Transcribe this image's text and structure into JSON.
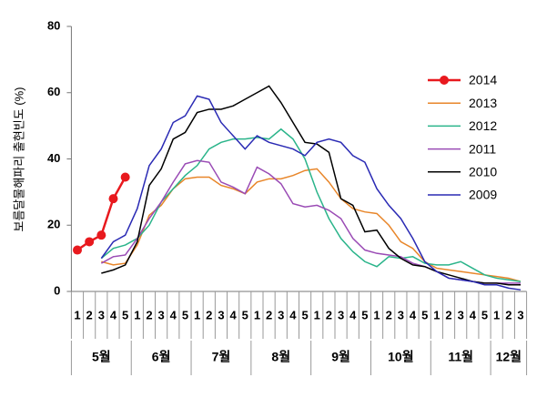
{
  "chart_data": {
    "type": "line",
    "ylabel": "보름달물해파리 출현빈도 (%)",
    "months": [
      {
        "name": "5월",
        "weeks": [
          "1",
          "2",
          "3",
          "4",
          "5"
        ]
      },
      {
        "name": "6월",
        "weeks": [
          "1",
          "2",
          "3",
          "4",
          "5"
        ]
      },
      {
        "name": "7월",
        "weeks": [
          "1",
          "2",
          "3",
          "4",
          "5"
        ]
      },
      {
        "name": "8월",
        "weeks": [
          "1",
          "2",
          "3",
          "4",
          "5"
        ]
      },
      {
        "name": "9월",
        "weeks": [
          "1",
          "2",
          "3",
          "4",
          "5"
        ]
      },
      {
        "name": "10월",
        "weeks": [
          "1",
          "2",
          "3",
          "4",
          "5"
        ]
      },
      {
        "name": "11월",
        "weeks": [
          "1",
          "2",
          "3",
          "4",
          "5"
        ]
      },
      {
        "name": "12월",
        "weeks": [
          "1",
          "2",
          "3"
        ]
      }
    ],
    "ylim": [
      0,
      80
    ],
    "yticks": [
      0,
      20,
      40,
      60,
      80
    ],
    "series": [
      {
        "name": "2014",
        "color": "#e8191e",
        "marker": true,
        "values": [
          12.5,
          15,
          17,
          28,
          34.5,
          null,
          null,
          null,
          null,
          null,
          null,
          null,
          null,
          null,
          null,
          null,
          null,
          null,
          null,
          null,
          null,
          null,
          null,
          null,
          null,
          null,
          null,
          null,
          null,
          null,
          null,
          null,
          null,
          null,
          null,
          null,
          null,
          null
        ]
      },
      {
        "name": "2013",
        "color": "#e8862a",
        "values": [
          null,
          null,
          9,
          8,
          8.5,
          14,
          23,
          26,
          31,
          34,
          34.5,
          34.5,
          32,
          31,
          29.5,
          33,
          34,
          34,
          35,
          36.5,
          37,
          33,
          28,
          25,
          24,
          23.5,
          20,
          15,
          13,
          9,
          7,
          6.5,
          6,
          5.5,
          5,
          4.5,
          4,
          3
        ]
      },
      {
        "name": "2012",
        "color": "#2ab48a",
        "values": [
          null,
          null,
          10,
          13,
          14,
          16,
          20,
          27,
          31,
          35,
          38,
          43,
          45,
          46,
          46,
          46.5,
          46,
          49,
          46,
          40,
          30,
          22,
          16,
          12,
          9,
          7.5,
          10.5,
          10,
          10.5,
          8.5,
          8,
          8,
          9,
          7,
          5,
          4,
          3.5,
          3
        ]
      },
      {
        "name": "2011",
        "color": "#9a4bb5",
        "values": [
          null,
          null,
          8.5,
          10.5,
          11,
          16,
          22,
          27,
          33,
          38.5,
          39.5,
          39,
          33,
          31.5,
          29.5,
          37.5,
          35.5,
          32.5,
          26.5,
          25.5,
          26,
          24.5,
          22,
          16,
          12.5,
          11.5,
          11,
          10.5,
          8.5,
          7.5,
          6,
          4,
          3.5,
          3,
          2.5,
          2.5,
          2.5,
          2.5
        ]
      },
      {
        "name": "2010",
        "color": "#000000",
        "values": [
          null,
          null,
          5.5,
          6.5,
          8,
          15,
          32,
          37,
          46,
          48,
          54,
          55,
          55,
          56,
          58,
          60,
          62,
          57,
          51,
          45,
          44.5,
          42,
          28,
          26,
          18,
          18.5,
          13,
          10,
          8,
          7.5,
          6,
          5,
          4,
          3,
          2.5,
          2.5,
          2,
          2
        ]
      },
      {
        "name": "2009",
        "color": "#2a2ab4",
        "values": [
          null,
          null,
          10,
          15,
          17,
          25,
          38,
          43,
          51,
          53,
          59,
          58,
          51,
          47,
          43,
          47,
          45,
          44,
          43,
          41,
          45,
          46,
          45,
          41,
          39,
          31,
          26,
          22,
          16,
          9,
          6,
          4,
          3.5,
          3,
          2,
          2,
          1,
          0.5
        ]
      }
    ]
  }
}
